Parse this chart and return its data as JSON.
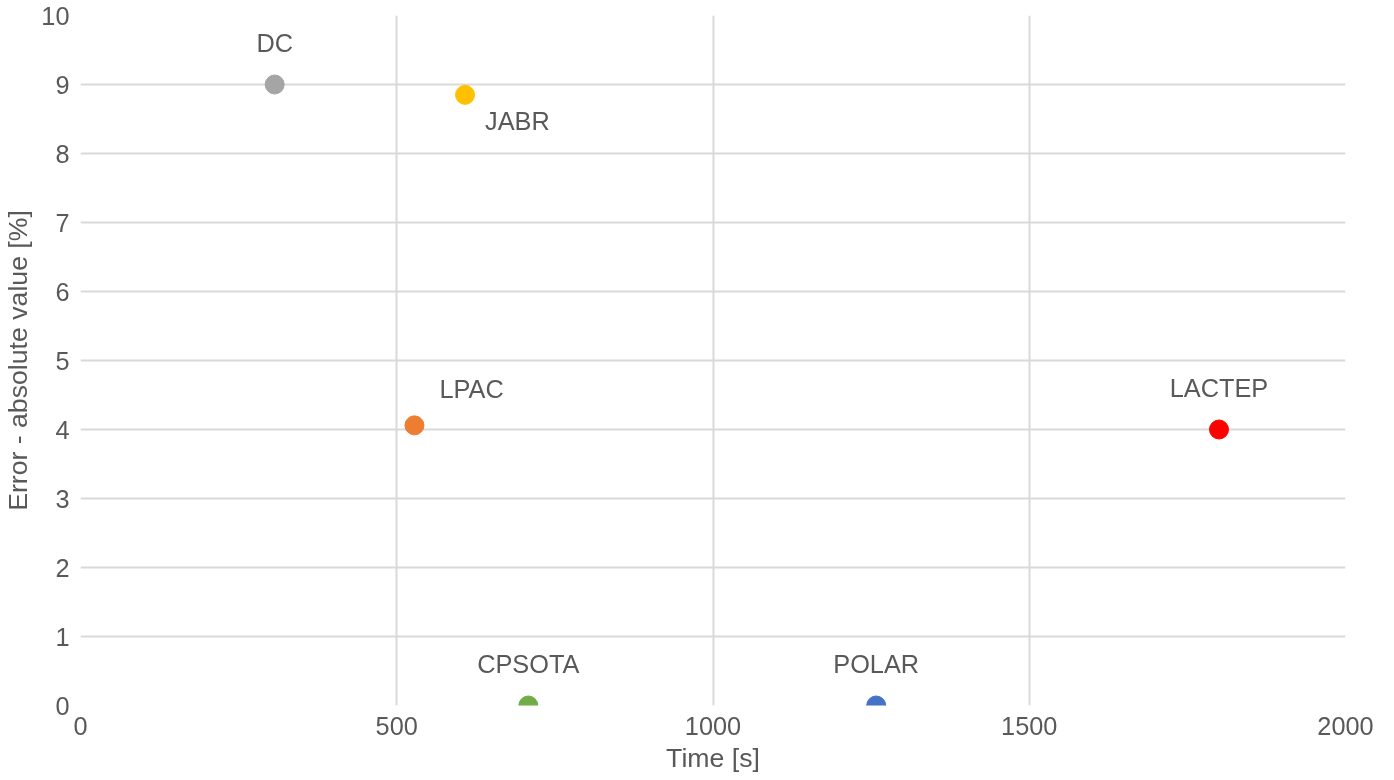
{
  "chart_data": {
    "type": "scatter",
    "xlabel": "Time [s]",
    "ylabel": "Error - absolute value [%]",
    "xlim": [
      0,
      2000
    ],
    "xticks": [
      0,
      500,
      1000,
      1500,
      2000
    ],
    "ylim": [
      0,
      10
    ],
    "yticks": [
      0,
      1,
      2,
      3,
      4,
      5,
      6,
      7,
      8,
      9,
      10
    ],
    "grid": true,
    "marker": "circle",
    "series": [
      {
        "name": "DC",
        "color": "#a5a5a5",
        "x": [
          307
        ],
        "values": [
          9.0
        ]
      },
      {
        "name": "JABR",
        "color": "#ffc000",
        "x": [
          608
        ],
        "values": [
          8.85
        ]
      },
      {
        "name": "LPAC",
        "color": "#ed7d31",
        "x": [
          528
        ],
        "values": [
          4.06
        ]
      },
      {
        "name": "LACTEP",
        "color": "#ff0000",
        "x": [
          1800
        ],
        "values": [
          4.0
        ]
      },
      {
        "name": "CPSOTA",
        "color": "#70ad47",
        "x": [
          708
        ],
        "values": [
          0
        ]
      },
      {
        "name": "POLAR",
        "color": "#4472c4",
        "x": [
          1258
        ],
        "values": [
          0
        ]
      }
    ]
  }
}
